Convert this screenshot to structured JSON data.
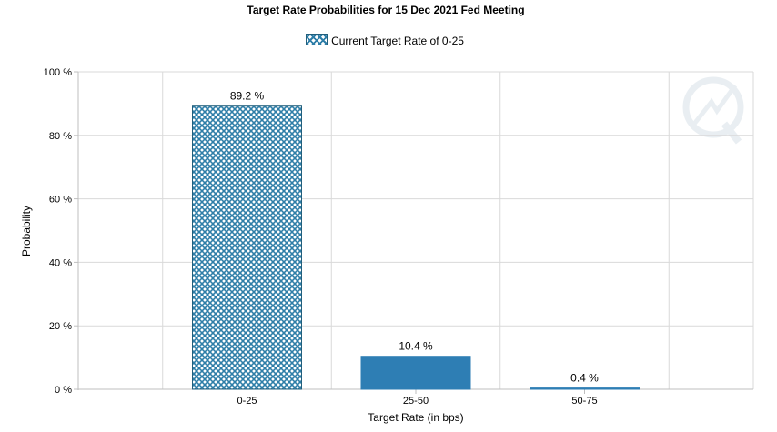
{
  "chart_data": {
    "type": "bar",
    "title": "Target Rate Probabilities for 15 Dec 2021 Fed Meeting",
    "legend": [
      "Current Target Rate of 0-25"
    ],
    "legend_position": "top-center",
    "categories": [
      "0-25",
      "25-50",
      "50-75"
    ],
    "values": [
      89.2,
      10.4,
      0.4
    ],
    "data_labels": [
      "89.2 %",
      "10.4 %",
      "0.4 %"
    ],
    "xlabel": "Target Rate (in bps)",
    "ylabel": "Probability",
    "ylim": [
      0,
      100
    ],
    "yticks": [
      0,
      20,
      40,
      60,
      80,
      100
    ],
    "ytick_labels": [
      "0 %",
      "20 %",
      "40 %",
      "60 %",
      "80 %",
      "100 %"
    ],
    "grid": true,
    "highlighted_category": "0-25"
  },
  "colors": {
    "bar": "#2e7eb4",
    "hatch": "#2e7ea8",
    "grid": "#d9d9d9",
    "axis": "#bfbfbf"
  }
}
